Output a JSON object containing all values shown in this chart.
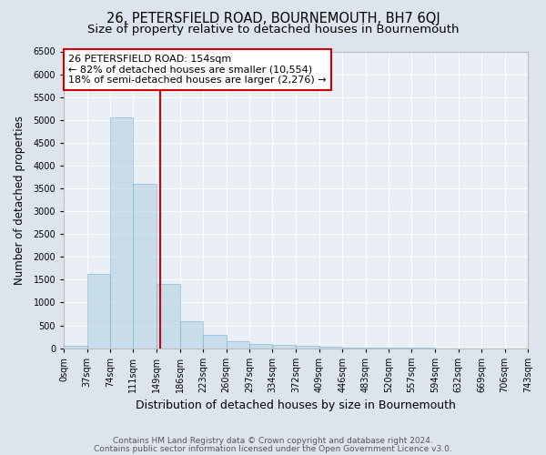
{
  "title": "26, PETERSFIELD ROAD, BOURNEMOUTH, BH7 6QJ",
  "subtitle": "Size of property relative to detached houses in Bournemouth",
  "xlabel": "Distribution of detached houses by size in Bournemouth",
  "ylabel": "Number of detached properties",
  "bin_edges": [
    0,
    37,
    74,
    111,
    149,
    186,
    223,
    260,
    297,
    334,
    372,
    409,
    446,
    483,
    520,
    557,
    594,
    632,
    669,
    706,
    743
  ],
  "bar_heights": [
    60,
    1620,
    5050,
    3600,
    1400,
    590,
    300,
    155,
    100,
    80,
    55,
    30,
    15,
    8,
    5,
    3,
    2,
    1,
    1,
    0
  ],
  "bar_color": "#aecde0",
  "bar_edge_color": "#6baed6",
  "bar_alpha": 0.55,
  "vline_x": 154,
  "vline_color": "#cc0000",
  "ylim": [
    0,
    6500
  ],
  "yticks": [
    0,
    500,
    1000,
    1500,
    2000,
    2500,
    3000,
    3500,
    4000,
    4500,
    5000,
    5500,
    6000,
    6500
  ],
  "annotation_title": "26 PETERSFIELD ROAD: 154sqm",
  "annotation_line1": "← 82% of detached houses are smaller (10,554)",
  "annotation_line2": "18% of semi-detached houses are larger (2,276) →",
  "annotation_box_color": "#ffffff",
  "annotation_box_edge": "#cc0000",
  "footer1": "Contains HM Land Registry data © Crown copyright and database right 2024.",
  "footer2": "Contains public sector information licensed under the Open Government Licence v3.0.",
  "bg_color": "#dde4ee",
  "plot_bg_color": "#eaeff5",
  "title_fontsize": 10.5,
  "subtitle_fontsize": 9.5,
  "xlabel_fontsize": 9,
  "ylabel_fontsize": 8.5,
  "tick_fontsize": 7,
  "annotation_fontsize": 8,
  "footer_fontsize": 6.5
}
